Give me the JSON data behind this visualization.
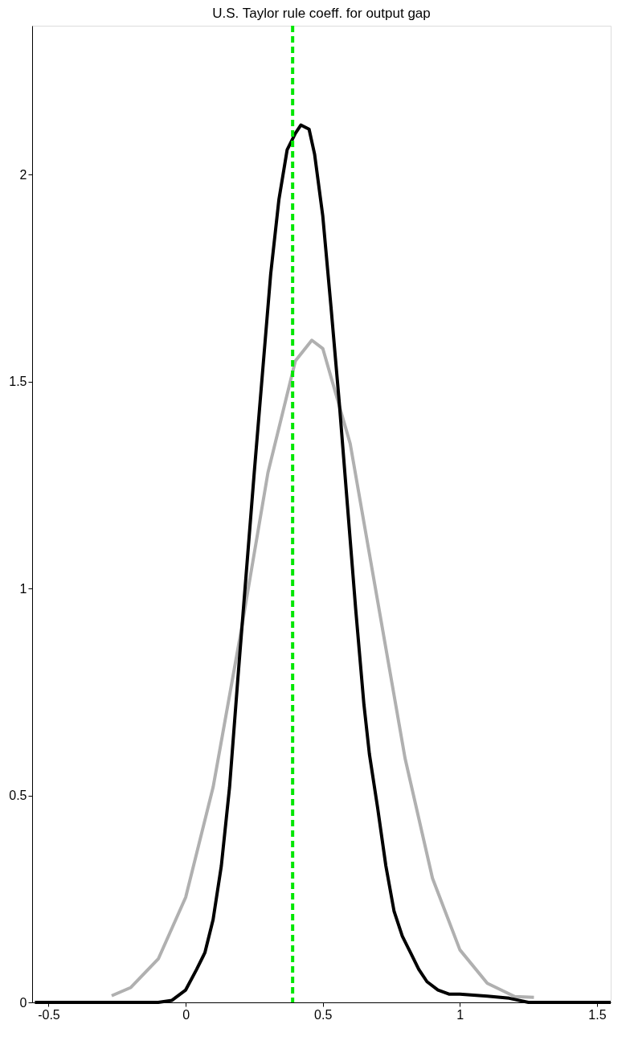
{
  "chart_data": {
    "type": "line",
    "title": "U.S. Taylor rule coeff. for output gap",
    "xlim": [
      -0.56,
      1.55
    ],
    "ylim": [
      0,
      2.36
    ],
    "xticks": [
      -0.5,
      0,
      0.5,
      1,
      1.5
    ],
    "yticks": [
      0,
      0.5,
      1,
      1.5,
      2
    ],
    "grid": false,
    "legend": false,
    "marker": "none",
    "line_style": "solid",
    "series": [
      {
        "color": "#b0b0b0",
        "x": [
          -0.27,
          -0.2,
          -0.1,
          0,
          0.1,
          0.2,
          0.3,
          0.4,
          0.46,
          0.5,
          0.6,
          0.7,
          0.8,
          0.9,
          1.0,
          1.1,
          1.2,
          1.27
        ],
        "values": [
          0.016,
          0.036,
          0.105,
          0.254,
          0.52,
          0.89,
          1.28,
          1.55,
          1.6,
          1.58,
          1.35,
          0.97,
          0.59,
          0.3,
          0.127,
          0.046,
          0.014,
          0.012
        ]
      },
      {
        "color": "#000000",
        "x": [
          -0.55,
          -0.3,
          -0.1,
          -0.05,
          0,
          0.04,
          0.07,
          0.1,
          0.13,
          0.16,
          0.19,
          0.22,
          0.25,
          0.28,
          0.31,
          0.34,
          0.37,
          0.4,
          0.42,
          0.45,
          0.47,
          0.5,
          0.53,
          0.56,
          0.59,
          0.62,
          0.65,
          0.67,
          0.7,
          0.73,
          0.76,
          0.79,
          0.82,
          0.85,
          0.88,
          0.92,
          0.96,
          1.0,
          1.1,
          1.18,
          1.25,
          1.55
        ],
        "values": [
          0,
          0,
          0,
          0.005,
          0.03,
          0.08,
          0.12,
          0.2,
          0.33,
          0.52,
          0.78,
          1.03,
          1.28,
          1.52,
          1.76,
          1.94,
          2.06,
          2.1,
          2.12,
          2.11,
          2.05,
          1.9,
          1.68,
          1.45,
          1.2,
          0.95,
          0.72,
          0.6,
          0.47,
          0.33,
          0.22,
          0.16,
          0.12,
          0.08,
          0.05,
          0.03,
          0.02,
          0.02,
          0.015,
          0.01,
          0,
          0
        ]
      }
    ],
    "ref_lines": [
      {
        "axis": "x",
        "value": 0.39,
        "color": "#00e600",
        "line_style": "dashed"
      }
    ]
  }
}
